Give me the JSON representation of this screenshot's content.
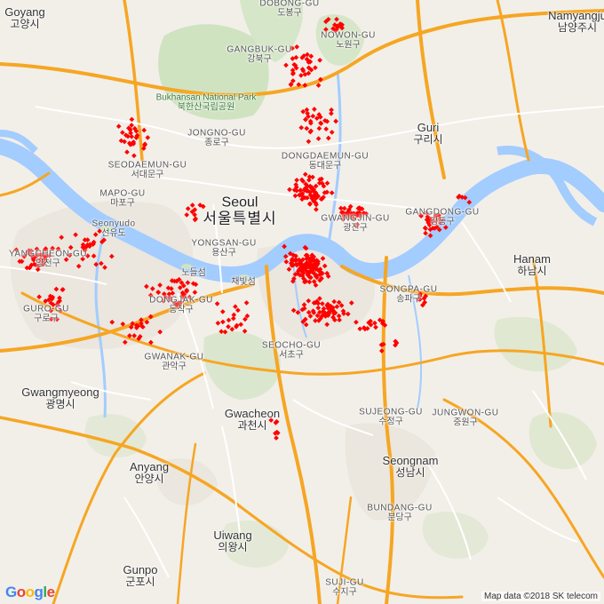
{
  "map": {
    "water_color": "#a3ccff",
    "marker_color": "#ff0000",
    "labels": [
      {
        "en": "Goyang",
        "ko": "고양시",
        "kind": "city"
      },
      {
        "en": "Namyangju",
        "ko": "남양주시",
        "kind": "city"
      },
      {
        "en": "DOBONG-GU",
        "ko": "도봉구",
        "kind": "district"
      },
      {
        "en": "NOWON-GU",
        "ko": "노원구",
        "kind": "district"
      },
      {
        "en": "GANGBUK-GU",
        "ko": "강북구",
        "kind": "district"
      },
      {
        "en": "Bukhansan National Park",
        "ko": "북한산국립공원",
        "kind": "park"
      },
      {
        "en": "JONGNO-GU",
        "ko": "종로구",
        "kind": "district"
      },
      {
        "en": "Guri",
        "ko": "구리시",
        "kind": "city"
      },
      {
        "en": "SEODAEMUN-GU",
        "ko": "서대문구",
        "kind": "district"
      },
      {
        "en": "DONGDAEMUN-GU",
        "ko": "동대문구",
        "kind": "district"
      },
      {
        "en": "MAPO-GU",
        "ko": "마포구",
        "kind": "district"
      },
      {
        "en": "Seoul",
        "ko": "서울특별시",
        "kind": "capital"
      },
      {
        "en": "GWANGJIN-GU",
        "ko": "광진구",
        "kind": "district"
      },
      {
        "en": "GANGDONG-GU",
        "ko": "강동구",
        "kind": "district"
      },
      {
        "en": "Seonyudo",
        "ko": "선유도",
        "kind": "district"
      },
      {
        "en": "YONGSAN-GU",
        "ko": "용산구",
        "kind": "district"
      },
      {
        "en": "YANGCHEON-GU",
        "ko": "양천구",
        "kind": "district"
      },
      {
        "en": "",
        "ko": "노들섬",
        "kind": "district"
      },
      {
        "en": "",
        "ko": "채빛섬",
        "kind": "district"
      },
      {
        "en": "Hanam",
        "ko": "하남시",
        "kind": "city"
      },
      {
        "en": "SONGPA-GU",
        "ko": "송파구",
        "kind": "district"
      },
      {
        "en": "DONGJAK-GU",
        "ko": "동작구",
        "kind": "district"
      },
      {
        "en": "GURO-GU",
        "ko": "구로구",
        "kind": "district"
      },
      {
        "en": "SEOCHO-GU",
        "ko": "서초구",
        "kind": "district"
      },
      {
        "en": "GWANAK-GU",
        "ko": "관악구",
        "kind": "district"
      },
      {
        "en": "Gwangmyeong",
        "ko": "광명시",
        "kind": "city"
      },
      {
        "en": "Gwacheon",
        "ko": "과천시",
        "kind": "city"
      },
      {
        "en": "SUJEONG-GU",
        "ko": "수정구",
        "kind": "district"
      },
      {
        "en": "JUNGWON-GU",
        "ko": "중원구",
        "kind": "district"
      },
      {
        "en": "Seongnam",
        "ko": "성남시",
        "kind": "city"
      },
      {
        "en": "Anyang",
        "ko": "안양시",
        "kind": "city"
      },
      {
        "en": "BUNDANG-GU",
        "ko": "분당구",
        "kind": "district"
      },
      {
        "en": "Uiwang",
        "ko": "의왕시",
        "kind": "city"
      },
      {
        "en": "Gunpo",
        "ko": "군포시",
        "kind": "city"
      },
      {
        "en": "SUJI-GU",
        "ko": "수지구",
        "kind": "district"
      }
    ],
    "attribution": "Map data ©2018 SK telecom",
    "logo_text": "Google"
  }
}
